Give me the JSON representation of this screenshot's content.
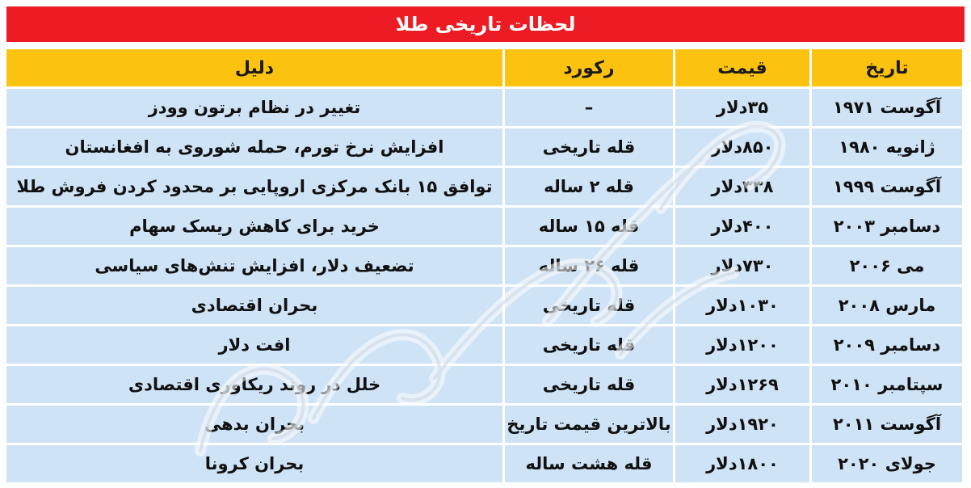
{
  "title": "لحظات تاریخی طلا",
  "columns": [
    "تاریخ",
    "قیمت",
    "رکورد",
    "دلیل"
  ],
  "rows": [
    {
      "date": "آگوست ۱۹۷۱",
      "price": "۳۵دلار",
      "record": "–",
      "reason": "تغییر در نظام برتون وودز"
    },
    {
      "date": "ژانویه ۱۹۸۰",
      "price": "۸۵۰دلار",
      "record": "قله تاریخی",
      "reason": "افزایش نرخ تورم، حمله شوروی به افغانستان"
    },
    {
      "date": "آگوست ۱۹۹۹",
      "price": "۳۳۸دلار",
      "record": "قله ۲ ساله",
      "reason": "توافق ۱۵ بانک مرکزی اروپایی بر محدود کردن فروش طلا"
    },
    {
      "date": "دسامبر ۲۰۰۳",
      "price": "۴۰۰دلار",
      "record": "قله ۱۵ ساله",
      "reason": "خرید برای کاهش ریسک سهام"
    },
    {
      "date": "می ۲۰۰۶",
      "price": "۷۳۰دلار",
      "record": "قله ۲۶ ساله",
      "reason": "تضعیف دلار، افزایش تنش‌های سیاسی"
    },
    {
      "date": "مارس ۲۰۰۸",
      "price": "۱۰۳۰دلار",
      "record": "قله تاریخی",
      "reason": "بحران اقتصادی"
    },
    {
      "date": "دسامبر ۲۰۰۹",
      "price": "۱۲۰۰دلار",
      "record": "قله تاریخی",
      "reason": "افت دلار"
    },
    {
      "date": "سپتامبر ۲۰۱۰",
      "price": "۱۲۶۹دلار",
      "record": "قله تاریخی",
      "reason": "خلل در روند ریکاوری اقتصادی"
    },
    {
      "date": "آگوست ۲۰۱۱",
      "price": "۱۹۲۰دلار",
      "record": "بالاترین قیمت تاریخ",
      "reason": "بحران بدهی"
    },
    {
      "date": "جولای ۲۰۲۰",
      "price": "۱۸۰۰دلار",
      "record": "قله هشت ساله",
      "reason": "بحران کرونا"
    }
  ],
  "watermark": "دنیای اقتصاد",
  "colors": {
    "title_bg": "#ed1c24",
    "header_bg": "#fbc20f",
    "cell_bg": "#cfe3f6"
  }
}
